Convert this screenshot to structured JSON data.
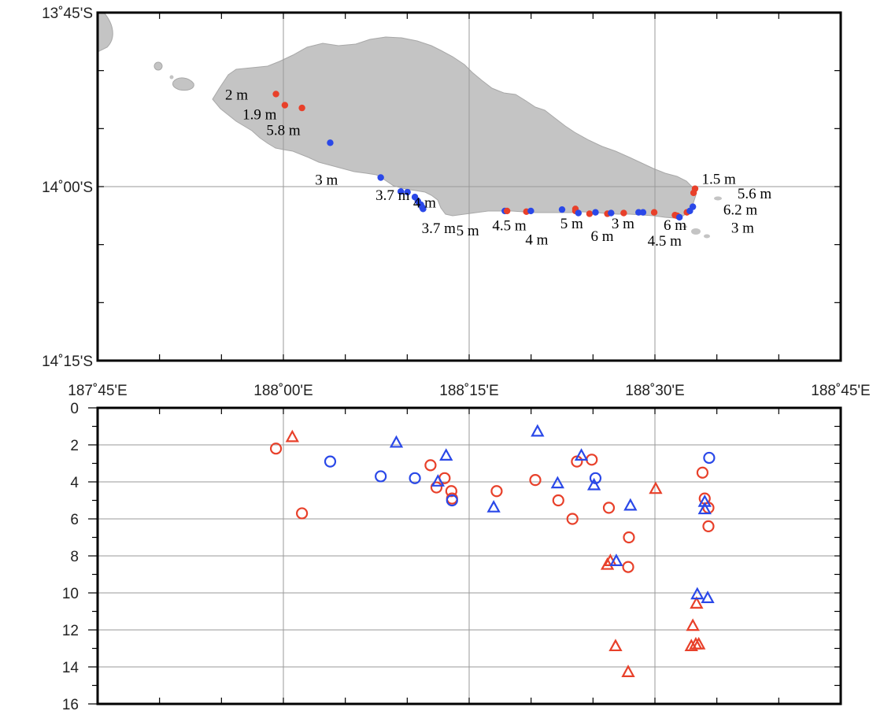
{
  "chart_data": [
    {
      "type": "map",
      "lon_ticks": [
        "187˚45'E",
        "188˚00'E",
        "188˚15'E",
        "188˚30'E",
        "188˚45'E"
      ],
      "lat_ticks": [
        "13˚45'S",
        "14˚00'S",
        "14˚15'S"
      ],
      "lon_range": [
        187.75,
        188.75
      ],
      "lat_range": [
        -14.25,
        -13.75
      ],
      "grid": true,
      "points": [
        {
          "lon": 187.99,
          "lat": -13.867,
          "color": "#e8402a"
        },
        {
          "lon": 188.002,
          "lat": -13.883,
          "color": "#e8402a"
        },
        {
          "lon": 188.025,
          "lat": -13.887,
          "color": "#e8402a"
        },
        {
          "lon": 188.063,
          "lat": -13.937,
          "color": "#2a48e8"
        },
        {
          "lon": 188.131,
          "lat": -13.987,
          "color": "#2a48e8"
        },
        {
          "lon": 188.158,
          "lat": -14.007,
          "color": "#2a48e8"
        },
        {
          "lon": 188.167,
          "lat": -14.008,
          "color": "#2a48e8"
        },
        {
          "lon": 188.177,
          "lat": -14.015,
          "color": "#2a48e8"
        },
        {
          "lon": 188.181,
          "lat": -14.021,
          "color": "#2a48e8"
        },
        {
          "lon": 188.185,
          "lat": -14.026,
          "color": "#2a48e8"
        },
        {
          "lon": 188.187,
          "lat": -14.03,
          "color": "#2a48e8"
        },
        {
          "lon": 188.188,
          "lat": -14.032,
          "color": "#2a48e8"
        },
        {
          "lon": 188.298,
          "lat": -14.035,
          "color": "#2a48e8"
        },
        {
          "lon": 188.301,
          "lat": -14.035,
          "color": "#e8402a"
        },
        {
          "lon": 188.327,
          "lat": -14.036,
          "color": "#e8402a"
        },
        {
          "lon": 188.333,
          "lat": -14.035,
          "color": "#2a48e8"
        },
        {
          "lon": 188.375,
          "lat": -14.033,
          "color": "#2a48e8"
        },
        {
          "lon": 188.393,
          "lat": -14.032,
          "color": "#e8402a"
        },
        {
          "lon": 188.393,
          "lat": -14.035,
          "color": "#e8402a"
        },
        {
          "lon": 188.397,
          "lat": -14.038,
          "color": "#2a48e8"
        },
        {
          "lon": 188.412,
          "lat": -14.039,
          "color": "#e8402a"
        },
        {
          "lon": 188.42,
          "lat": -14.037,
          "color": "#2a48e8"
        },
        {
          "lon": 188.436,
          "lat": -14.039,
          "color": "#e8402a"
        },
        {
          "lon": 188.441,
          "lat": -14.038,
          "color": "#2a48e8"
        },
        {
          "lon": 188.458,
          "lat": -14.038,
          "color": "#e8402a"
        },
        {
          "lon": 188.478,
          "lat": -14.037,
          "color": "#2a48e8"
        },
        {
          "lon": 188.484,
          "lat": -14.037,
          "color": "#2a48e8"
        },
        {
          "lon": 188.499,
          "lat": -14.037,
          "color": "#e8402a"
        },
        {
          "lon": 188.527,
          "lat": -14.041,
          "color": "#e8402a"
        },
        {
          "lon": 188.53,
          "lat": -14.042,
          "color": "#e8402a"
        },
        {
          "lon": 188.533,
          "lat": -14.044,
          "color": "#2a48e8"
        },
        {
          "lon": 188.543,
          "lat": -14.037,
          "color": "#e8402a"
        },
        {
          "lon": 188.547,
          "lat": -14.035,
          "color": "#2a48e8"
        },
        {
          "lon": 188.551,
          "lat": -14.029,
          "color": "#2a48e8"
        },
        {
          "lon": 188.552,
          "lat": -14.009,
          "color": "#e8402a"
        },
        {
          "lon": 188.554,
          "lat": -14.003,
          "color": "#e8402a"
        }
      ],
      "labels": [
        {
          "text": "2 m",
          "lon": 187.937,
          "lat": -13.875
        },
        {
          "text": "1.9 m",
          "lon": 187.968,
          "lat": -13.903
        },
        {
          "text": "5.8 m",
          "lon": 188.0,
          "lat": -13.926
        },
        {
          "text": "3 m",
          "lon": 188.058,
          "lat": -13.997
        },
        {
          "text": "3.7 m",
          "lon": 188.147,
          "lat": -14.019
        },
        {
          "text": "4 m",
          "lon": 188.19,
          "lat": -14.03
        },
        {
          "text": "3.7 m",
          "lon": 188.209,
          "lat": -14.067
        },
        {
          "text": "5 m",
          "lon": 188.248,
          "lat": -14.07
        },
        {
          "text": "4.5 m",
          "lon": 188.304,
          "lat": -14.063
        },
        {
          "text": "4 m",
          "lon": 188.341,
          "lat": -14.083
        },
        {
          "text": "5 m",
          "lon": 188.388,
          "lat": -14.06
        },
        {
          "text": "6 m",
          "lon": 188.429,
          "lat": -14.078
        },
        {
          "text": "3 m",
          "lon": 188.457,
          "lat": -14.06
        },
        {
          "text": "4.5 m",
          "lon": 188.513,
          "lat": -14.085
        },
        {
          "text": "6 m",
          "lon": 188.527,
          "lat": -14.062
        },
        {
          "text": "1.5 m",
          "lon": 188.586,
          "lat": -13.996
        },
        {
          "text": "5.6 m",
          "lon": 188.634,
          "lat": -14.017
        },
        {
          "text": "6.2 m",
          "lon": 188.615,
          "lat": -14.04
        },
        {
          "text": "3 m",
          "lon": 188.618,
          "lat": -14.066
        }
      ]
    },
    {
      "type": "scatter",
      "xlim": [
        187.75,
        188.75
      ],
      "ylim": [
        0,
        16
      ],
      "y_inverted": true,
      "y_ticks": [
        0,
        2,
        4,
        6,
        8,
        10,
        12,
        14,
        16
      ],
      "grid": true,
      "series": [
        {
          "marker": "circle",
          "color": "#e8402a",
          "points": [
            {
              "x": 187.99,
              "y": 2.2
            },
            {
              "x": 188.025,
              "y": 5.7
            },
            {
              "x": 188.198,
              "y": 3.1
            },
            {
              "x": 188.206,
              "y": 4.3
            },
            {
              "x": 188.217,
              "y": 3.8
            },
            {
              "x": 188.226,
              "y": 4.5
            },
            {
              "x": 188.227,
              "y": 4.9
            },
            {
              "x": 188.287,
              "y": 4.5
            },
            {
              "x": 188.339,
              "y": 3.9
            },
            {
              "x": 188.37,
              "y": 5.0
            },
            {
              "x": 188.389,
              "y": 6.0
            },
            {
              "x": 188.395,
              "y": 2.9
            },
            {
              "x": 188.415,
              "y": 2.8
            },
            {
              "x": 188.438,
              "y": 5.4
            },
            {
              "x": 188.465,
              "y": 7.0
            },
            {
              "x": 188.464,
              "y": 8.6
            },
            {
              "x": 188.564,
              "y": 3.5
            },
            {
              "x": 188.567,
              "y": 4.9
            },
            {
              "x": 188.572,
              "y": 5.4
            },
            {
              "x": 188.572,
              "y": 6.4
            }
          ]
        },
        {
          "marker": "circle",
          "color": "#2a48e8",
          "points": [
            {
              "x": 188.063,
              "y": 2.9
            },
            {
              "x": 188.131,
              "y": 3.7
            },
            {
              "x": 188.177,
              "y": 3.8
            },
            {
              "x": 188.227,
              "y": 5.0
            },
            {
              "x": 188.42,
              "y": 3.8
            },
            {
              "x": 188.573,
              "y": 2.7
            }
          ]
        },
        {
          "marker": "triangle",
          "color": "#e8402a",
          "points": [
            {
              "x": 188.012,
              "y": 1.6
            },
            {
              "x": 188.436,
              "y": 8.5
            },
            {
              "x": 188.44,
              "y": 8.3
            },
            {
              "x": 188.447,
              "y": 12.9
            },
            {
              "x": 188.464,
              "y": 14.3
            },
            {
              "x": 188.501,
              "y": 4.4
            },
            {
              "x": 188.549,
              "y": 12.9
            },
            {
              "x": 188.555,
              "y": 12.8
            },
            {
              "x": 188.559,
              "y": 12.8
            },
            {
              "x": 188.551,
              "y": 11.8
            },
            {
              "x": 188.556,
              "y": 10.6
            }
          ]
        },
        {
          "marker": "triangle",
          "color": "#2a48e8",
          "points": [
            {
              "x": 188.152,
              "y": 1.9
            },
            {
              "x": 188.208,
              "y": 4.0
            },
            {
              "x": 188.219,
              "y": 2.6
            },
            {
              "x": 188.283,
              "y": 5.4
            },
            {
              "x": 188.342,
              "y": 1.3
            },
            {
              "x": 188.369,
              "y": 4.1
            },
            {
              "x": 188.401,
              "y": 2.6
            },
            {
              "x": 188.418,
              "y": 4.2
            },
            {
              "x": 188.448,
              "y": 8.3
            },
            {
              "x": 188.467,
              "y": 5.3
            },
            {
              "x": 188.557,
              "y": 10.1
            },
            {
              "x": 188.567,
              "y": 5.1
            },
            {
              "x": 188.567,
              "y": 5.5
            },
            {
              "x": 188.571,
              "y": 10.3
            }
          ]
        }
      ]
    }
  ]
}
